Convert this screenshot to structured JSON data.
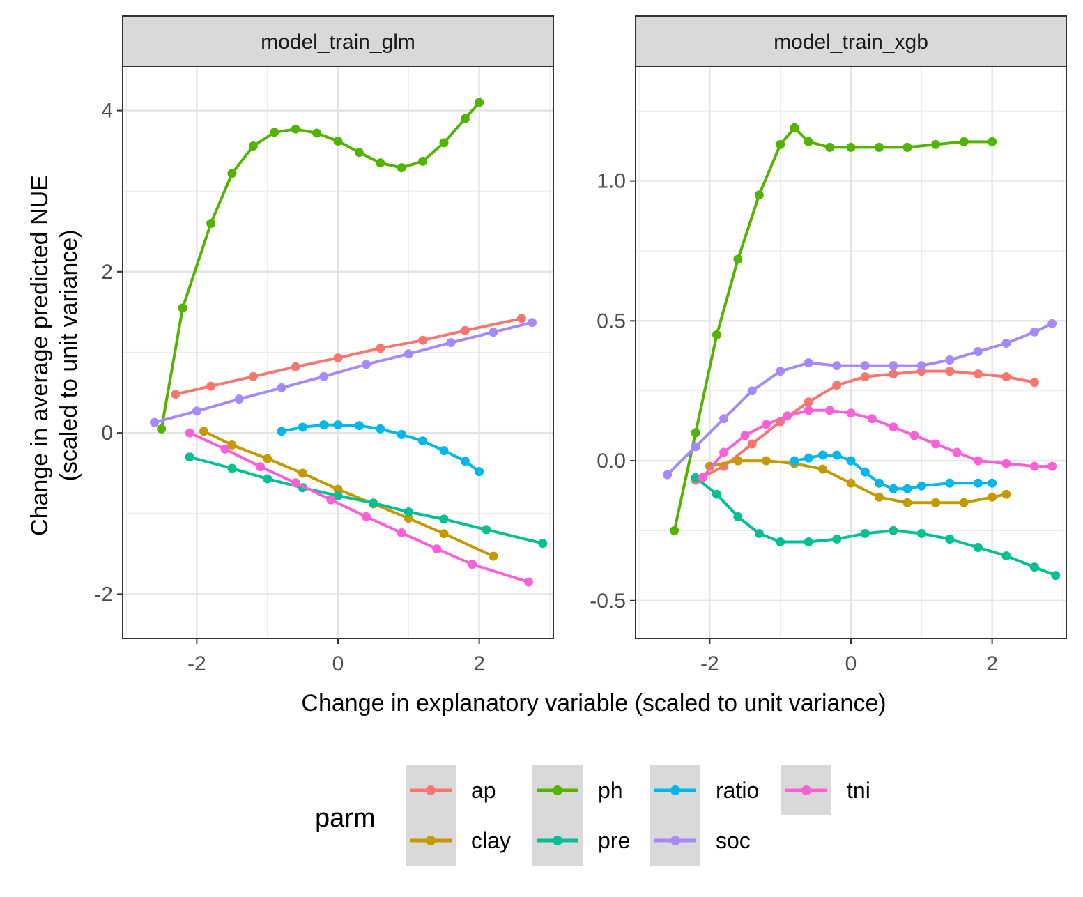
{
  "chart_data": {
    "type": "line",
    "xlabel": "Change in explanatory variable (scaled to unit variance)",
    "ylabel_lines": [
      "Change in average predicted NUE",
      "(scaled to unit variance)"
    ],
    "grid": true,
    "legend": {
      "title": "parm",
      "position": "bottom",
      "entries": [
        {
          "name": "ap",
          "color": "#F8766D"
        },
        {
          "name": "clay",
          "color": "#C49A00"
        },
        {
          "name": "ph",
          "color": "#53B400"
        },
        {
          "name": "pre",
          "color": "#00C094"
        },
        {
          "name": "ratio",
          "color": "#00B6EB"
        },
        {
          "name": "soc",
          "color": "#A58AFF"
        },
        {
          "name": "tni",
          "color": "#FB61D7"
        }
      ]
    },
    "panels": [
      {
        "title": "model_train_glm",
        "xlim": [
          -3.05,
          3.05
        ],
        "ylim": [
          -2.55,
          4.55
        ],
        "x_ticks": [
          -2,
          0,
          2
        ],
        "x_tick_labels": [
          "-2",
          "0",
          "2"
        ],
        "y_ticks": [
          -2,
          0,
          2,
          4
        ],
        "y_tick_labels": [
          "-2",
          "0",
          "2",
          "4"
        ],
        "series": [
          {
            "name": "ap",
            "x": [
              -2.3,
              -1.8,
              -1.2,
              -0.6,
              0,
              0.6,
              1.2,
              1.8,
              2.6
            ],
            "y": [
              0.48,
              0.58,
              0.7,
              0.82,
              0.93,
              1.05,
              1.15,
              1.27,
              1.42
            ]
          },
          {
            "name": "clay",
            "x": [
              -1.9,
              -1.5,
              -1,
              -0.5,
              0,
              0.5,
              1,
              1.5,
              2.2
            ],
            "y": [
              0.02,
              -0.15,
              -0.32,
              -0.5,
              -0.7,
              -0.88,
              -1.06,
              -1.25,
              -1.53
            ]
          },
          {
            "name": "ph",
            "x": [
              -2.5,
              -2.2,
              -1.8,
              -1.5,
              -1.2,
              -0.9,
              -0.6,
              -0.3,
              0,
              0.3,
              0.6,
              0.9,
              1.2,
              1.5,
              1.8,
              2
            ],
            "y": [
              0.05,
              1.55,
              2.6,
              3.22,
              3.56,
              3.73,
              3.77,
              3.72,
              3.62,
              3.48,
              3.35,
              3.29,
              3.37,
              3.6,
              3.9,
              4.1
            ]
          },
          {
            "name": "pre",
            "x": [
              -2.1,
              -1.5,
              -1,
              -0.5,
              0,
              0.5,
              1,
              1.5,
              2.1,
              2.9
            ],
            "y": [
              -0.3,
              -0.44,
              -0.57,
              -0.68,
              -0.78,
              -0.87,
              -0.98,
              -1.07,
              -1.2,
              -1.37
            ]
          },
          {
            "name": "ratio",
            "x": [
              -0.8,
              -0.5,
              -0.2,
              0,
              0.3,
              0.6,
              0.9,
              1.2,
              1.5,
              1.8,
              2
            ],
            "y": [
              0.02,
              0.07,
              0.1,
              0.1,
              0.09,
              0.05,
              -0.02,
              -0.1,
              -0.22,
              -0.35,
              -0.48
            ]
          },
          {
            "name": "soc",
            "x": [
              -2.6,
              -2,
              -1.4,
              -0.8,
              -0.2,
              0.4,
              1,
              1.6,
              2.2,
              2.75
            ],
            "y": [
              0.13,
              0.27,
              0.42,
              0.56,
              0.7,
              0.85,
              0.98,
              1.12,
              1.25,
              1.37
            ]
          },
          {
            "name": "tni",
            "x": [
              -2.1,
              -1.6,
              -1.1,
              -0.6,
              -0.1,
              0.4,
              0.9,
              1.4,
              1.9,
              2.7
            ],
            "y": [
              0,
              -0.2,
              -0.42,
              -0.62,
              -0.83,
              -1.04,
              -1.24,
              -1.44,
              -1.63,
              -1.85
            ]
          }
        ]
      },
      {
        "title": "model_train_xgb",
        "xlim": [
          -3.05,
          3.05
        ],
        "ylim": [
          -0.635,
          1.41
        ],
        "x_ticks": [
          -2,
          0,
          2
        ],
        "x_tick_labels": [
          "-2",
          "0",
          "2"
        ],
        "y_ticks": [
          -0.5,
          0,
          0.5,
          1
        ],
        "y_tick_labels": [
          "-0.5",
          "0.0",
          "0.5",
          "1.0"
        ],
        "series": [
          {
            "name": "ap",
            "x": [
              -2.2,
              -1.8,
              -1.4,
              -1,
              -0.6,
              -0.2,
              0.2,
              0.6,
              1,
              1.4,
              1.8,
              2.2,
              2.6
            ],
            "y": [
              -0.07,
              -0.02,
              0.06,
              0.14,
              0.21,
              0.27,
              0.3,
              0.31,
              0.32,
              0.32,
              0.31,
              0.3,
              0.28
            ]
          },
          {
            "name": "clay",
            "x": [
              -2,
              -1.6,
              -1.2,
              -0.8,
              -0.4,
              0,
              0.4,
              0.8,
              1.2,
              1.6,
              2,
              2.2
            ],
            "y": [
              -0.02,
              0,
              0,
              -0.01,
              -0.03,
              -0.08,
              -0.13,
              -0.15,
              -0.15,
              -0.15,
              -0.13,
              -0.12
            ]
          },
          {
            "name": "ph",
            "x": [
              -2.5,
              -2.2,
              -1.9,
              -1.6,
              -1.3,
              -1,
              -0.8,
              -0.6,
              -0.3,
              0,
              0.4,
              0.8,
              1.2,
              1.6,
              2
            ],
            "y": [
              -0.25,
              0.1,
              0.45,
              0.72,
              0.95,
              1.13,
              1.19,
              1.14,
              1.12,
              1.12,
              1.12,
              1.12,
              1.13,
              1.14,
              1.14
            ]
          },
          {
            "name": "pre",
            "x": [
              -2.2,
              -1.9,
              -1.6,
              -1.3,
              -1,
              -0.6,
              -0.2,
              0.2,
              0.6,
              1,
              1.4,
              1.8,
              2.2,
              2.6,
              2.9
            ],
            "y": [
              -0.06,
              -0.12,
              -0.2,
              -0.26,
              -0.29,
              -0.29,
              -0.28,
              -0.26,
              -0.25,
              -0.26,
              -0.28,
              -0.31,
              -0.34,
              -0.38,
              -0.41
            ]
          },
          {
            "name": "ratio",
            "x": [
              -0.8,
              -0.6,
              -0.4,
              -0.2,
              0,
              0.2,
              0.4,
              0.6,
              0.8,
              1,
              1.4,
              1.8,
              2
            ],
            "y": [
              0,
              0.01,
              0.02,
              0.02,
              0,
              -0.04,
              -0.08,
              -0.1,
              -0.1,
              -0.09,
              -0.08,
              -0.08,
              -0.08
            ]
          },
          {
            "name": "soc",
            "x": [
              -2.6,
              -2.2,
              -1.8,
              -1.4,
              -1,
              -0.6,
              -0.2,
              0.2,
              0.6,
              1,
              1.4,
              1.8,
              2.2,
              2.6,
              2.85
            ],
            "y": [
              -0.05,
              0.05,
              0.15,
              0.25,
              0.32,
              0.35,
              0.34,
              0.34,
              0.34,
              0.34,
              0.36,
              0.39,
              0.42,
              0.46,
              0.49
            ]
          },
          {
            "name": "tni",
            "x": [
              -2.1,
              -1.8,
              -1.5,
              -1.2,
              -0.9,
              -0.6,
              -0.3,
              0,
              0.3,
              0.6,
              0.9,
              1.2,
              1.5,
              1.8,
              2.2,
              2.6,
              2.85
            ],
            "y": [
              -0.06,
              0.03,
              0.09,
              0.13,
              0.16,
              0.18,
              0.18,
              0.17,
              0.15,
              0.12,
              0.09,
              0.06,
              0.03,
              0,
              -0.01,
              -0.02,
              -0.02
            ]
          }
        ]
      }
    ]
  }
}
